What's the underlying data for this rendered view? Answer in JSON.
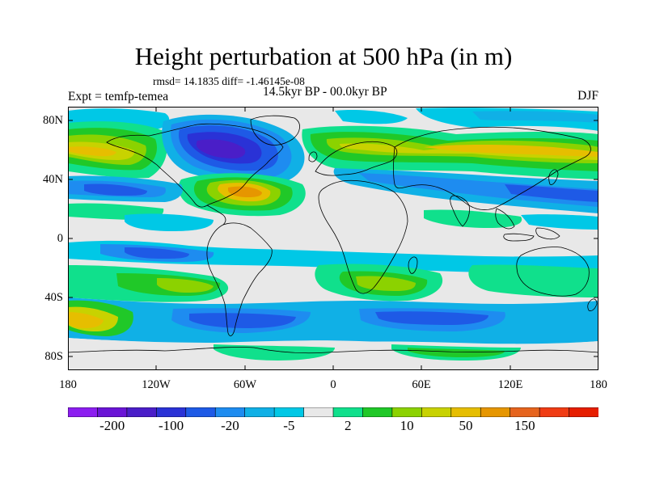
{
  "title": "Height perturbation at 500 hPa (in m)",
  "stats": "rmsd= 14.1835 diff= -1.46145e-08",
  "expt": "Expt = temfp-temea",
  "period": "14.5kyr BP - 00.0kyr BP",
  "season": "DJF",
  "lat_labels": [
    "80N",
    "40N",
    "0",
    "40S",
    "80S"
  ],
  "lon_labels": [
    "180",
    "120W",
    "60W",
    "0",
    "60E",
    "120E",
    "180"
  ],
  "colorbar": {
    "colors": [
      "#8c1ef0",
      "#6a14d6",
      "#4a1ec8",
      "#2a32d6",
      "#1e5ae6",
      "#1e8cf0",
      "#10b0e6",
      "#00c8e6",
      "#e8e8e8",
      "#10e08c",
      "#20c828",
      "#8cd200",
      "#c8d200",
      "#e6be00",
      "#e69600",
      "#e6641e",
      "#f03c14",
      "#e61e00"
    ],
    "labels": [
      "-200",
      "-100",
      "-20",
      "-5",
      "2",
      "10",
      "50",
      "150"
    ]
  },
  "legend_colors": {
    "land": "#e8e8e8",
    "coast": "#000000"
  }
}
